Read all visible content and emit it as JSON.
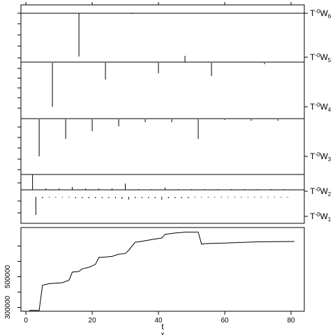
{
  "chart_data": [
    {
      "type": "bar",
      "title": "",
      "xlabel": "",
      "ylabel": "",
      "xlim": [
        -1.5,
        84
      ],
      "series": [
        {
          "name": "T^-0W_6",
          "label_prefix": "T",
          "label_sup": "-0",
          "label_base": "W",
          "label_sub": "6",
          "values": [
            [
              16,
              62
            ],
            [
              32,
              1
            ]
          ]
        },
        {
          "name": "T^-0W_5",
          "label_prefix": "T",
          "label_sup": "-0",
          "label_base": "W",
          "label_sub": "5",
          "values": [
            [
              48,
              9
            ]
          ]
        },
        {
          "name": "T^-0W_4",
          "label_prefix": "T",
          "label_sup": "-0",
          "label_base": "W",
          "label_sub": "4",
          "values": [
            [
              8,
              63
            ],
            [
              24,
              24
            ],
            [
              40,
              15
            ],
            [
              56,
              19
            ],
            [
              72,
              2
            ]
          ]
        },
        {
          "name": "T^-0W_3",
          "label_prefix": "T",
          "label_sup": "-0",
          "label_base": "W",
          "label_sub": "3",
          "values": [
            [
              4,
              53
            ],
            [
              12,
              28
            ],
            [
              20,
              17
            ],
            [
              28,
              10
            ],
            [
              36,
              4
            ],
            [
              44,
              4
            ],
            [
              52,
              28
            ],
            [
              60,
              1
            ],
            [
              68,
              2
            ],
            [
              76,
              2
            ]
          ]
        },
        {
          "name": "T^-0W_2",
          "label_prefix": "T",
          "label_sup": "-0",
          "label_base": "W",
          "label_sub": "2",
          "values": [
            [
              2,
              22
            ],
            [
              6,
              2
            ],
            [
              10,
              2
            ],
            [
              14,
              4
            ],
            [
              18,
              2
            ],
            [
              22,
              2
            ],
            [
              26,
              2
            ],
            [
              30,
              9
            ],
            [
              34,
              1
            ],
            [
              38,
              1
            ],
            [
              42,
              3
            ],
            [
              46,
              1
            ],
            [
              50,
              1
            ],
            [
              54,
              1
            ],
            [
              58,
              1
            ],
            [
              62,
              1
            ],
            [
              66,
              1
            ],
            [
              70,
              1
            ],
            [
              74,
              1
            ],
            [
              78,
              1
            ]
          ]
        },
        {
          "name": "T^-0W_1",
          "label_prefix": "T",
          "label_sup": "-0",
          "label_base": "W",
          "label_sub": "1",
          "values": [
            [
              3,
              26
            ],
            [
              5,
              2
            ],
            [
              7,
              1
            ],
            [
              9,
              1
            ],
            [
              11,
              1
            ],
            [
              13,
              1
            ],
            [
              15,
              2
            ],
            [
              17,
              2
            ],
            [
              19,
              2
            ],
            [
              21,
              2
            ],
            [
              23,
              2
            ],
            [
              25,
              2
            ],
            [
              27,
              2
            ],
            [
              29,
              3
            ],
            [
              31,
              4
            ],
            [
              33,
              2
            ],
            [
              35,
              2
            ],
            [
              37,
              2
            ],
            [
              39,
              2
            ],
            [
              41,
              4
            ],
            [
              43,
              2
            ],
            [
              45,
              2
            ],
            [
              47,
              2
            ],
            [
              49,
              2
            ],
            [
              51,
              1
            ],
            [
              53,
              1
            ],
            [
              55,
              1
            ],
            [
              57,
              1
            ],
            [
              59,
              1
            ],
            [
              61,
              1
            ],
            [
              63,
              1
            ],
            [
              65,
              1
            ],
            [
              67,
              1
            ],
            [
              69,
              1
            ],
            [
              71,
              1
            ],
            [
              73,
              1
            ],
            [
              75,
              1
            ],
            [
              77,
              1
            ],
            [
              79,
              1
            ]
          ]
        }
      ]
    },
    {
      "type": "line",
      "title": "",
      "xlabel": "t",
      "ylabel": "",
      "xlim": [
        -1.5,
        84
      ],
      "ylim": [
        275000,
        820000
      ],
      "xticks": [
        0,
        20,
        40,
        60,
        80
      ],
      "yticks": [
        300000,
        500000
      ],
      "ytick_labels": [
        "300000",
        "500000"
      ],
      "extra_text": "x",
      "series": [
        {
          "name": "",
          "x": [
            1,
            4,
            5,
            7,
            9,
            11,
            13,
            14,
            16,
            17,
            19,
            21,
            22,
            24,
            26,
            28,
            30,
            31,
            33,
            35,
            38,
            41,
            42,
            45,
            48,
            52,
            53,
            54,
            56,
            60,
            70,
            81
          ],
          "y": [
            281000,
            281000,
            445000,
            455000,
            458000,
            461000,
            477000,
            530000,
            534000,
            551000,
            561000,
            580000,
            625000,
            628000,
            632000,
            646000,
            651000,
            672000,
            724000,
            730000,
            742000,
            752000,
            776000,
            784000,
            790000,
            790000,
            712000,
            715000,
            717000,
            719000,
            727000,
            729000
          ]
        }
      ]
    }
  ]
}
